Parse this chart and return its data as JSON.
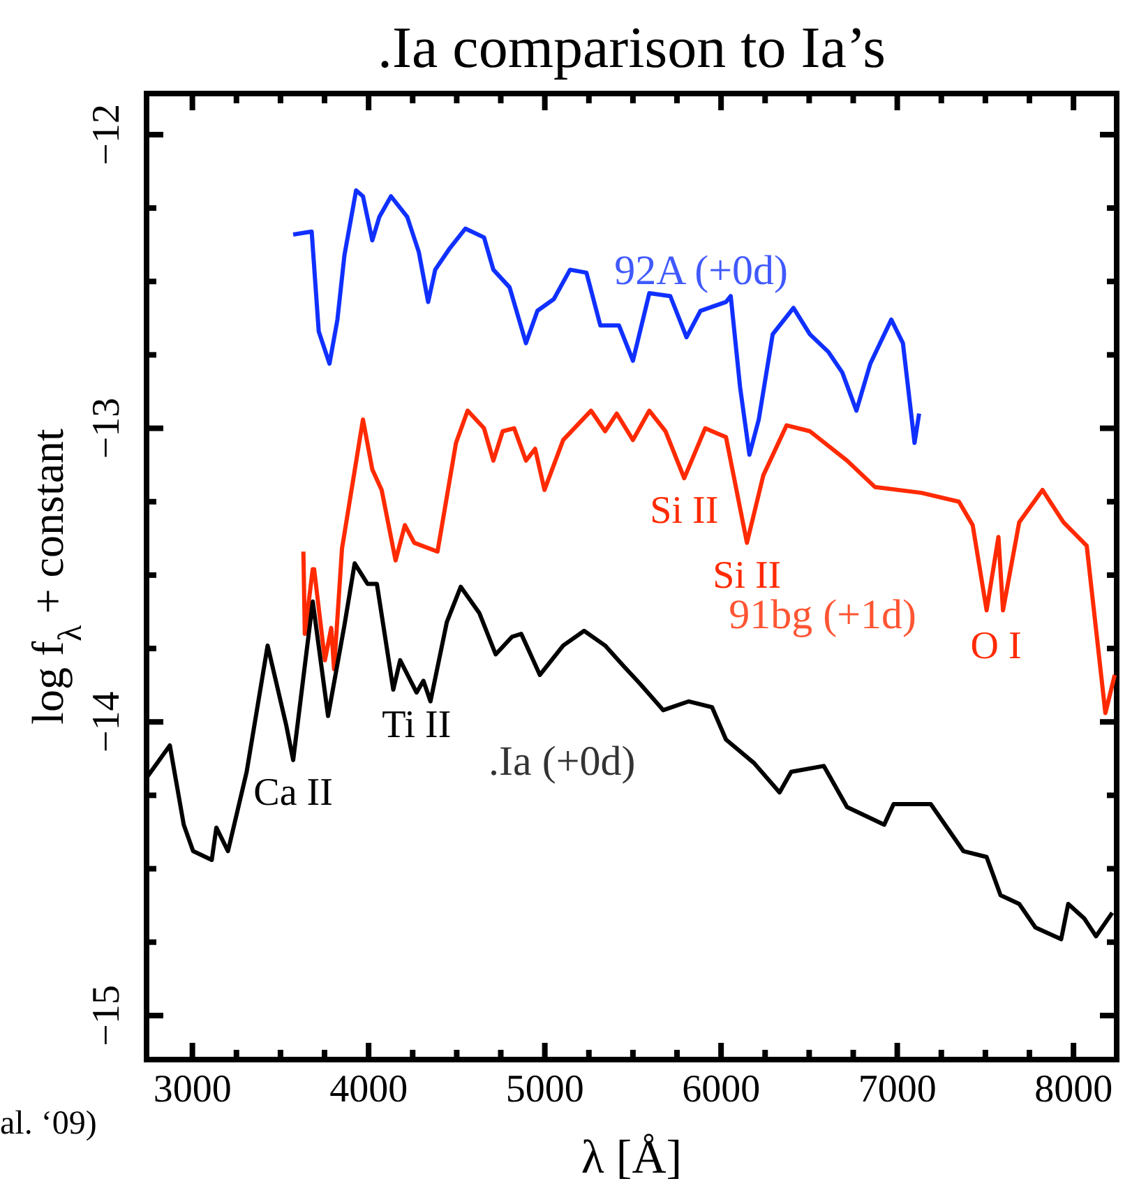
{
  "chart_data": {
    "type": "line",
    "title": ".Ia comparison to Ia’s",
    "xlabel": "λ [Å]",
    "ylabel": "log f$_{λ}$ + constant",
    "xlim": [
      2740,
      8245
    ],
    "ylim": [
      -15.15,
      -11.86
    ],
    "xticks": [
      3000,
      {
        "value": 3250,
        "label": null
      },
      {
        "value": 3500,
        "label": null
      },
      {
        "value": 3750,
        "label": null
      },
      4000,
      {
        "value": 4250,
        "label": null
      },
      {
        "value": 4500,
        "label": null
      },
      {
        "value": 4750,
        "label": null
      },
      5000,
      {
        "value": 5250,
        "label": null
      },
      {
        "value": 5500,
        "label": null
      },
      {
        "value": 5750,
        "label": null
      },
      6000,
      {
        "value": 6250,
        "label": null
      },
      {
        "value": 6500,
        "label": null
      },
      {
        "value": 6750,
        "label": null
      },
      7000,
      {
        "value": 7250,
        "label": null
      },
      {
        "value": 7500,
        "label": null
      },
      {
        "value": 7750,
        "label": null
      },
      8000
    ],
    "yticks": [
      {
        "value": -15,
        "label": "−15"
      },
      {
        "value": -14.75,
        "label": null
      },
      {
        "value": -14.5,
        "label": null
      },
      {
        "value": -14.25,
        "label": null
      },
      {
        "value": -14,
        "label": "−14"
      },
      {
        "value": -13.75,
        "label": null
      },
      {
        "value": -13.5,
        "label": null
      },
      {
        "value": -13.25,
        "label": null
      },
      {
        "value": -13,
        "label": "−13"
      },
      {
        "value": -12.75,
        "label": null
      },
      {
        "value": -12.5,
        "label": null
      },
      {
        "value": -12.25,
        "label": null
      },
      {
        "value": -12,
        "label": "−12"
      }
    ],
    "grid": false,
    "marker": "none",
    "line_style": "solid",
    "series": [
      {
        "name": "92A (+0d)",
        "color": "#1030ff",
        "x": [
          3572,
          3677,
          3717,
          3778,
          3823,
          3863,
          3929,
          3968,
          4021,
          4061,
          4127,
          4219,
          4285,
          4338,
          4378,
          4457,
          4549,
          4655,
          4708,
          4800,
          4893,
          4958,
          5051,
          5143,
          5236,
          5315,
          5421,
          5500,
          5593,
          5712,
          5804,
          5883,
          6028,
          6055,
          6108,
          6161,
          6214,
          6293,
          6411,
          6504,
          6609,
          6688,
          6768,
          6847,
          6966,
          7032,
          7098,
          7124
        ],
        "values": [
          -12.34,
          -12.33,
          -12.67,
          -12.78,
          -12.63,
          -12.41,
          -12.19,
          -12.21,
          -12.36,
          -12.28,
          -12.21,
          -12.28,
          -12.4,
          -12.57,
          -12.46,
          -12.39,
          -12.32,
          -12.35,
          -12.46,
          -12.52,
          -12.71,
          -12.6,
          -12.56,
          -12.46,
          -12.47,
          -12.65,
          -12.65,
          -12.77,
          -12.54,
          -12.55,
          -12.69,
          -12.6,
          -12.57,
          -12.55,
          -12.86,
          -13.09,
          -12.97,
          -12.68,
          -12.59,
          -12.68,
          -12.74,
          -12.81,
          -12.94,
          -12.78,
          -12.63,
          -12.71,
          -13.05,
          -12.95
        ]
      },
      {
        "name": "91bg (+1d)",
        "color": "#ff2a00",
        "x": [
          3630,
          3638,
          3683,
          3691,
          3752,
          3788,
          3804,
          3849,
          3968,
          4021,
          4074,
          4153,
          4206,
          4259,
          4391,
          4496,
          4562,
          4655,
          4708,
          4761,
          4826,
          4893,
          4945,
          4998,
          5104,
          5262,
          5342,
          5408,
          5500,
          5593,
          5685,
          5791,
          5910,
          6028,
          6147,
          6240,
          6372,
          6504,
          6715,
          6873,
          7138,
          7350,
          7428,
          7507,
          7574,
          7600,
          7692,
          7824,
          7943,
          8075,
          8181,
          8234
        ],
        "values": [
          -13.42,
          -13.7,
          -13.48,
          -13.48,
          -13.79,
          -13.68,
          -13.82,
          -13.41,
          -12.97,
          -13.14,
          -13.21,
          -13.45,
          -13.33,
          -13.39,
          -13.42,
          -13.05,
          -12.94,
          -13.0,
          -13.11,
          -13.01,
          -13.0,
          -13.11,
          -13.07,
          -13.21,
          -13.04,
          -12.94,
          -13.01,
          -12.95,
          -13.04,
          -12.94,
          -13.01,
          -13.17,
          -13.0,
          -13.03,
          -13.39,
          -13.16,
          -12.99,
          -13.01,
          -13.11,
          -13.2,
          -13.22,
          -13.25,
          -13.33,
          -13.62,
          -13.37,
          -13.62,
          -13.32,
          -13.21,
          -13.32,
          -13.4,
          -13.97,
          -13.84
        ]
      },
      {
        "name": ".Ia (+0d)",
        "color": "#000000",
        "x": [
          2740,
          2872,
          2951,
          3004,
          3110,
          3136,
          3202,
          3308,
          3427,
          3532,
          3572,
          3683,
          3770,
          3863,
          3921,
          3994,
          4047,
          4140,
          4179,
          4272,
          4311,
          4351,
          4444,
          4523,
          4629,
          4721,
          4814,
          4866,
          4972,
          5104,
          5223,
          5342,
          5447,
          5540,
          5672,
          5817,
          5949,
          6028,
          6187,
          6332,
          6398,
          6583,
          6715,
          6926,
          6979,
          7190,
          7375,
          7507,
          7586,
          7692,
          7784,
          7930,
          7970,
          8062,
          8128,
          8220
        ],
        "values": [
          -14.19,
          -14.08,
          -14.35,
          -14.44,
          -14.47,
          -14.36,
          -14.44,
          -14.17,
          -13.74,
          -14.01,
          -14.13,
          -13.59,
          -13.98,
          -13.67,
          -13.46,
          -13.53,
          -13.53,
          -13.89,
          -13.79,
          -13.9,
          -13.86,
          -13.93,
          -13.66,
          -13.54,
          -13.63,
          -13.77,
          -13.71,
          -13.7,
          -13.84,
          -13.74,
          -13.69,
          -13.74,
          -13.81,
          -13.87,
          -13.96,
          -13.93,
          -13.95,
          -14.06,
          -14.14,
          -14.24,
          -14.17,
          -14.15,
          -14.29,
          -14.35,
          -14.28,
          -14.28,
          -14.44,
          -14.46,
          -14.59,
          -14.62,
          -14.7,
          -14.74,
          -14.62,
          -14.67,
          -14.73,
          -14.65
        ]
      }
    ],
    "annotations": [
      {
        "text": "Si II",
        "x": 5791,
        "y": -13.17
      },
      {
        "text": "Si II",
        "x": 6147,
        "y": -13.39
      },
      {
        "text": "O I",
        "x": 7560,
        "y": -13.63
      },
      {
        "text": "Ca II",
        "x": 3572,
        "y": -14.13
      },
      {
        "text": "Ti II",
        "x": 4272,
        "y": -13.9
      },
      "al. ‘09)"
    ]
  }
}
